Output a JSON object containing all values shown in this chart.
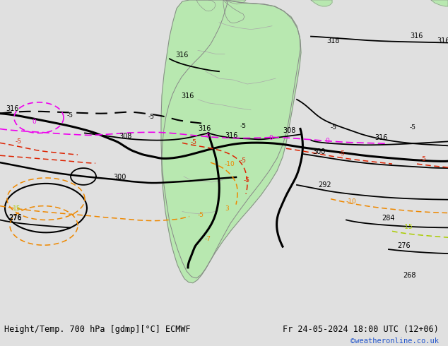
{
  "title_left": "Height/Temp. 700 hPa [gdmp][°C] ECMWF",
  "title_right": "Fr 24-05-2024 18:00 UTC (12+06)",
  "credit": "©weatheronline.co.uk",
  "bg_color": "#e0e0e0",
  "ocean_color": "#dcdcdc",
  "land_color": "#b8e8b0",
  "land_border": "#888888",
  "figsize": [
    6.34,
    4.9
  ],
  "dpi": 100,
  "title_fontsize": 8.5,
  "credit_fontsize": 7.5,
  "credit_color": "#2255cc"
}
